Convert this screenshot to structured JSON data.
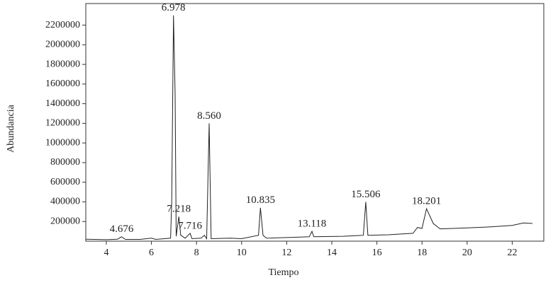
{
  "chart_data": {
    "type": "line",
    "x_label": "Tiempo",
    "y_label": "Abundancia",
    "xlim": [
      3.09,
      23.4
    ],
    "ylim": [
      0,
      2420000
    ],
    "xticks": [
      4,
      6,
      8,
      10,
      12,
      14,
      16,
      18,
      20,
      22
    ],
    "yticks": [
      200000,
      400000,
      600000,
      800000,
      1000000,
      1200000,
      1400000,
      1600000,
      1800000,
      2000000,
      2200000
    ],
    "color": "#222222",
    "x": [
      3.1,
      4.0,
      4.5,
      4.676,
      4.85,
      5.5,
      6.0,
      6.2,
      6.85,
      6.9,
      6.978,
      7.05,
      7.1,
      7.218,
      7.3,
      7.5,
      7.716,
      7.8,
      8.2,
      8.35,
      8.45,
      8.56,
      8.65,
      9.5,
      10.0,
      10.75,
      10.835,
      10.95,
      11.1,
      12.5,
      13.0,
      13.118,
      13.2,
      14.5,
      15.4,
      15.506,
      15.6,
      16.5,
      17.6,
      17.8,
      18.0,
      18.201,
      18.5,
      18.8,
      20,
      21,
      22,
      22.5,
      22.9
    ],
    "values": [
      20000,
      15000,
      20000,
      45000,
      18000,
      18000,
      30000,
      18000,
      30000,
      400000,
      2300000,
      1500000,
      50000,
      250000,
      60000,
      30000,
      80000,
      25000,
      30000,
      60000,
      25000,
      1200000,
      25000,
      30000,
      25000,
      60000,
      340000,
      60000,
      30000,
      40000,
      45000,
      100000,
      45000,
      50000,
      60000,
      400000,
      60000,
      65000,
      80000,
      140000,
      130000,
      330000,
      180000,
      125000,
      135000,
      145000,
      160000,
      185000,
      180000
    ],
    "peak_labels": [
      4.676,
      6.978,
      7.218,
      7.716,
      8.56,
      10.835,
      13.118,
      15.506,
      18.201
    ],
    "peak_label_texts": [
      "4.676",
      "6.978",
      "7.218",
      "7.716",
      "8.560",
      "10.835",
      "13.118",
      "15.506",
      "18.201"
    ],
    "peak_heights": [
      45000,
      2300000,
      250000,
      80000,
      1200000,
      340000,
      100000,
      400000,
      330000
    ]
  }
}
